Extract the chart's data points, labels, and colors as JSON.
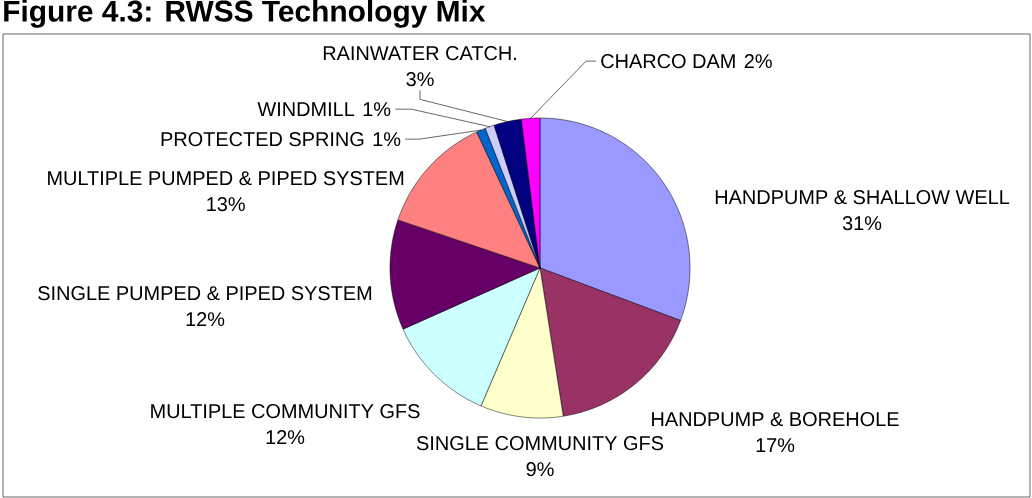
{
  "chart_data": {
    "type": "pie",
    "title": "Figure 4.3: RWSS Technology Mix",
    "categories": [
      "HANDPUMP & SHALLOW WELL",
      "HANDPUMP & BOREHOLE",
      "SINGLE COMMUNITY GFS",
      "MULTIPLE COMMUNITY GFS",
      "SINGLE PUMPED & PIPED SYSTEM",
      "MULTIPLE PUMPED & PIPED SYSTEM",
      "PROTECTED SPRING",
      "WINDMILL",
      "RAINWATER CATCH.",
      "CHARCO DAM"
    ],
    "values": [
      31,
      17,
      9,
      12,
      12,
      13,
      1,
      1,
      3,
      2
    ],
    "value_labels": [
      "31%",
      "17%",
      "9%",
      "12%",
      "12%",
      "13%",
      "1%",
      "1%",
      "3%",
      "2%"
    ],
    "colors": [
      "#9999ff",
      "#993366",
      "#ffffcc",
      "#ccffff",
      "#660066",
      "#ff8080",
      "#0066cc",
      "#ccccff",
      "#000080",
      "#ff00ff"
    ]
  }
}
